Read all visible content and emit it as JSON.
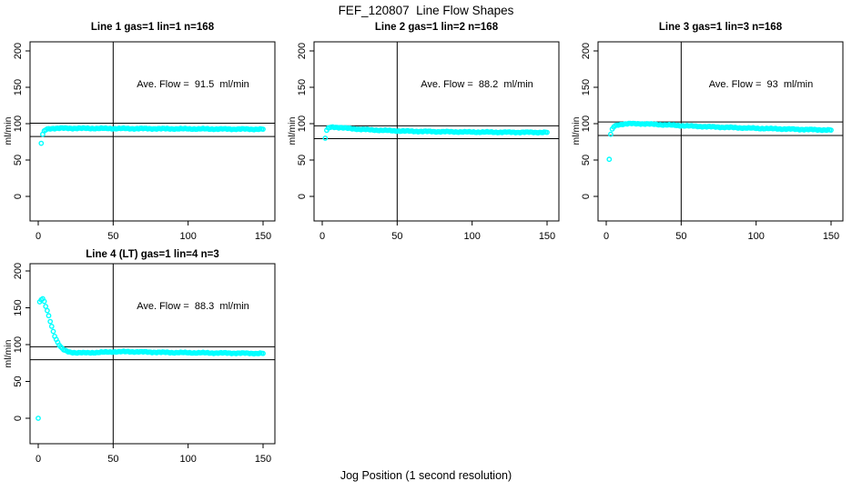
{
  "figure": {
    "title": "FEF_120807  Line Flow Shapes",
    "xlabel": "Jog Position (1 second resolution)"
  },
  "chart_data": [
    {
      "type": "scatter",
      "title": "Line 1 gas=1 lin=1 n=168",
      "annotation": "Ave. Flow =  91.5  ml/min",
      "ave_flow_ml_min": 91.5,
      "gas": 1,
      "lin": 1,
      "n": 168,
      "ylabel": "ml/min",
      "xlim": [
        0,
        150
      ],
      "ylim": [
        0,
        200
      ],
      "xticks": [
        0,
        50,
        100,
        150
      ],
      "yticks": [
        0,
        50,
        100,
        150,
        200
      ],
      "ref_vline_x": 50,
      "ref_hlines": [
        100.7,
        82.4
      ],
      "marker": "open-circle",
      "marker_color": "#00FFFF",
      "axis_color": "#000000",
      "note": "band rendered at every integer jog position, linear interpolation between keypoints",
      "series_keypoints": [
        [
          2,
          73
        ],
        [
          3,
          85
        ],
        [
          4,
          89.5
        ],
        [
          5,
          91.5
        ],
        [
          6,
          92.5
        ],
        [
          8,
          93.2
        ],
        [
          12,
          93.6
        ],
        [
          20,
          93.6
        ],
        [
          40,
          93.4
        ],
        [
          60,
          93.2
        ],
        [
          80,
          93.0
        ],
        [
          100,
          92.8
        ],
        [
          120,
          92.6
        ],
        [
          150,
          92.4
        ]
      ],
      "extra_points": []
    },
    {
      "type": "scatter",
      "title": "Line 2 gas=1 lin=2 n=168",
      "annotation": "Ave. Flow =  88.2  ml/min",
      "ave_flow_ml_min": 88.2,
      "gas": 1,
      "lin": 2,
      "n": 168,
      "ylabel": "ml/min",
      "xlim": [
        0,
        150
      ],
      "ylim": [
        0,
        200
      ],
      "xticks": [
        0,
        50,
        100,
        150
      ],
      "yticks": [
        0,
        50,
        100,
        150,
        200
      ],
      "ref_vline_x": 50,
      "ref_hlines": [
        97.0,
        79.4
      ],
      "marker": "open-circle",
      "marker_color": "#00FFFF",
      "axis_color": "#000000",
      "note": "band rendered at every integer jog position, linear interpolation between keypoints",
      "series_keypoints": [
        [
          2,
          80
        ],
        [
          3,
          90.5
        ],
        [
          4,
          93.5
        ],
        [
          5,
          94.8
        ],
        [
          7,
          95.4
        ],
        [
          10,
          95.0
        ],
        [
          14,
          94.2
        ],
        [
          18,
          93.4
        ],
        [
          25,
          92.3
        ],
        [
          35,
          91.2
        ],
        [
          45,
          90.4
        ],
        [
          55,
          89.8
        ],
        [
          70,
          89.2
        ],
        [
          85,
          88.8
        ],
        [
          100,
          88.5
        ],
        [
          120,
          88.2
        ],
        [
          150,
          88.0
        ]
      ],
      "extra_points": []
    },
    {
      "type": "scatter",
      "title": "Line 3 gas=1 lin=3 n=168",
      "annotation": "Ave. Flow =  93  ml/min",
      "ave_flow_ml_min": 93,
      "gas": 1,
      "lin": 3,
      "n": 168,
      "ylabel": "ml/min",
      "xlim": [
        0,
        150
      ],
      "ylim": [
        0,
        200
      ],
      "xticks": [
        0,
        50,
        100,
        150
      ],
      "yticks": [
        0,
        50,
        100,
        150,
        200
      ],
      "ref_vline_x": 50,
      "ref_hlines": [
        102.3,
        83.7
      ],
      "marker": "open-circle",
      "marker_color": "#00FFFF",
      "axis_color": "#000000",
      "note": "band rendered at every integer jog position, linear interpolation between keypoints",
      "series_keypoints": [
        [
          2,
          51
        ],
        [
          3,
          85
        ],
        [
          4,
          92
        ],
        [
          5,
          95.5
        ],
        [
          6,
          97
        ],
        [
          8,
          98.5
        ],
        [
          11,
          99.4
        ],
        [
          15,
          99.9
        ],
        [
          22,
          100
        ],
        [
          30,
          99.3
        ],
        [
          40,
          98.3
        ],
        [
          50,
          97.3
        ],
        [
          60,
          96.4
        ],
        [
          70,
          95.6
        ],
        [
          80,
          94.9
        ],
        [
          90,
          94.2
        ],
        [
          100,
          93.6
        ],
        [
          110,
          93.1
        ],
        [
          120,
          92.6
        ],
        [
          130,
          92.1
        ],
        [
          140,
          91.6
        ],
        [
          150,
          91.2
        ]
      ],
      "extra_points": []
    },
    {
      "type": "scatter",
      "title": "Line 4 (LT) gas=1 lin=4 n=3",
      "annotation": "Ave. Flow =  88.3  ml/min",
      "ave_flow_ml_min": 88.3,
      "gas": 1,
      "lin": 4,
      "n": 3,
      "ylabel": "ml/min",
      "xlim": [
        0,
        150
      ],
      "ylim": [
        0,
        200
      ],
      "xticks": [
        0,
        50,
        100,
        150
      ],
      "yticks": [
        0,
        50,
        100,
        150,
        200
      ],
      "ref_vline_x": 50,
      "ref_hlines": [
        97.1,
        79.5
      ],
      "marker": "open-circle",
      "marker_color": "#00FFFF",
      "axis_color": "#000000",
      "note": "band rendered at every integer jog position, linear interpolation between keypoints; isolated zero-flow point at start",
      "series_keypoints": [
        [
          1,
          158
        ],
        [
          2,
          161
        ],
        [
          3,
          162
        ],
        [
          4,
          158
        ],
        [
          5,
          152
        ],
        [
          6,
          146
        ],
        [
          7,
          139
        ],
        [
          8,
          132
        ],
        [
          9,
          125
        ],
        [
          10,
          118
        ],
        [
          11,
          112
        ],
        [
          12,
          107
        ],
        [
          13,
          103
        ],
        [
          14,
          99.5
        ],
        [
          15,
          96.5
        ],
        [
          16,
          94.5
        ],
        [
          17,
          93
        ],
        [
          18,
          91.8
        ],
        [
          19,
          91
        ],
        [
          20,
          90.4
        ],
        [
          22,
          89.6
        ],
        [
          25,
          89
        ],
        [
          30,
          88.8
        ],
        [
          40,
          89.3
        ],
        [
          50,
          90.2
        ],
        [
          60,
          90.4
        ],
        [
          70,
          90
        ],
        [
          80,
          89.5
        ],
        [
          90,
          89.2
        ],
        [
          100,
          89
        ],
        [
          110,
          88.8
        ],
        [
          120,
          88.6
        ],
        [
          130,
          88.4
        ],
        [
          140,
          88.2
        ],
        [
          150,
          88
        ]
      ],
      "extra_points": [
        [
          0,
          0
        ]
      ]
    }
  ]
}
